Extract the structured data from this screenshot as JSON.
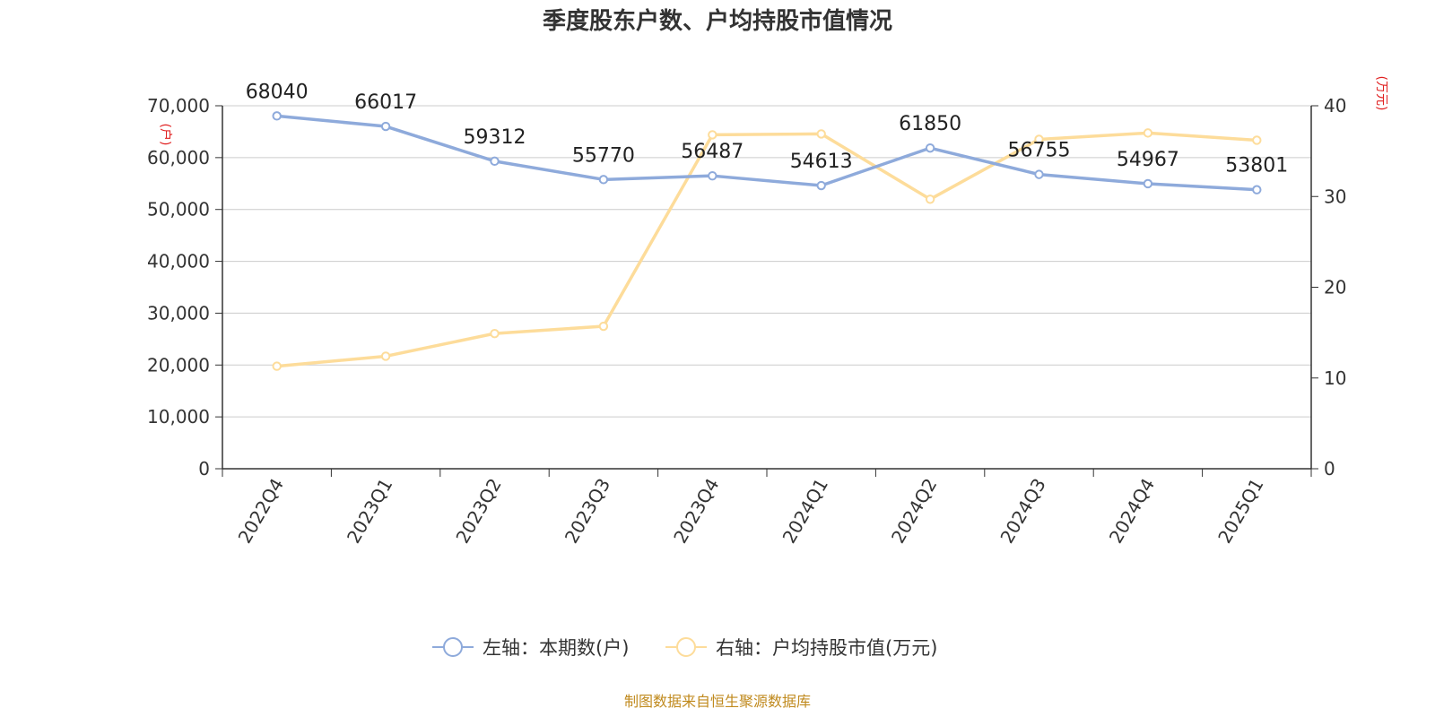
{
  "chart_data": {
    "type": "line",
    "title": "季度股东户数、户均持股市值情况",
    "categories": [
      "2022Q4",
      "2023Q1",
      "2023Q2",
      "2023Q3",
      "2023Q4",
      "2024Q1",
      "2024Q2",
      "2024Q3",
      "2024Q4",
      "2025Q1"
    ],
    "left_axis": {
      "unit": "(户)",
      "ylim": [
        0,
        70000
      ],
      "ticks": [
        "0",
        "10,000",
        "20,000",
        "30,000",
        "40,000",
        "50,000",
        "60,000",
        "70,000"
      ]
    },
    "right_axis": {
      "unit": "(万元)",
      "ylim": [
        0,
        40
      ],
      "ticks": [
        "0",
        "10",
        "20",
        "30",
        "40"
      ]
    },
    "series": [
      {
        "name": "左轴：本期数(户)",
        "axis": "left",
        "color": "#8eaadb",
        "values": [
          68040,
          66017,
          59312,
          55770,
          56487,
          54613,
          61850,
          56755,
          54967,
          53801
        ],
        "labels": [
          "68040",
          "66017",
          "59312",
          "55770",
          "56487",
          "54613",
          "61850",
          "56755",
          "54967",
          "53801"
        ]
      },
      {
        "name": "右轴：户均持股市值(万元)",
        "axis": "right",
        "color": "#fddc9a",
        "values": [
          11.3,
          12.4,
          14.9,
          15.7,
          36.8,
          36.9,
          29.7,
          36.3,
          37.0,
          36.2
        ]
      }
    ],
    "grid": true,
    "legend_position": "bottom"
  },
  "source": "制图数据来自恒生聚源数据库"
}
